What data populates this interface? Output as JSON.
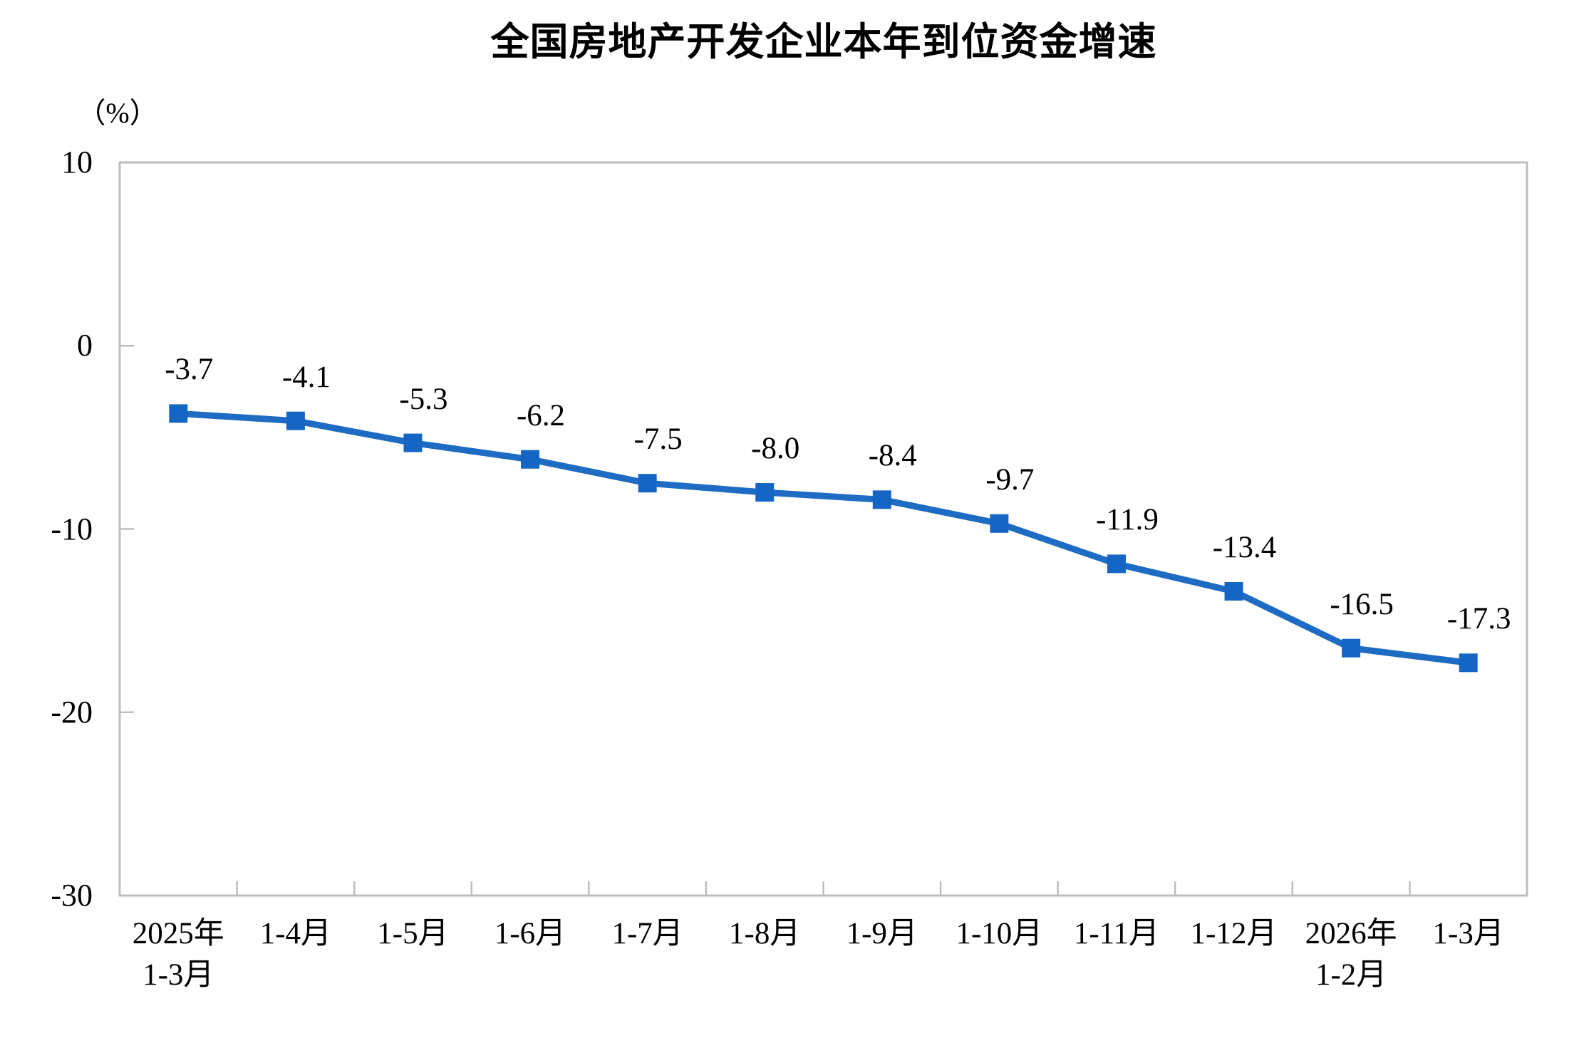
{
  "chart_data": {
    "type": "line",
    "title": "全国房地产开发企业本年到位资金增速",
    "ylabel": "（%）",
    "categories": [
      "2025年\n1-3月",
      "1-4月",
      "1-5月",
      "1-6月",
      "1-7月",
      "1-8月",
      "1-9月",
      "1-10月",
      "1-11月",
      "1-12月",
      "2026年\n1-2月",
      "1-3月"
    ],
    "values": [
      -3.7,
      -4.1,
      -5.3,
      -6.2,
      -7.5,
      -8.0,
      -8.4,
      -9.7,
      -11.9,
      -13.4,
      -16.5,
      -17.3
    ],
    "data_labels": [
      "-3.7",
      "-4.1",
      "-5.3",
      "-6.2",
      "-7.5",
      "-8.0",
      "-8.4",
      "-9.7",
      "-11.9",
      "-13.4",
      "-16.5",
      "-17.3"
    ],
    "ylim": [
      -30,
      10
    ],
    "yticks": [
      10,
      0,
      -10,
      -20,
      -30
    ],
    "grid": false,
    "legend_position": "none",
    "marker": "square",
    "line_color": "#1E6BC4",
    "marker_color": "#1565C4",
    "axis_color": "#BDBDBD",
    "text_color": "#000000"
  }
}
